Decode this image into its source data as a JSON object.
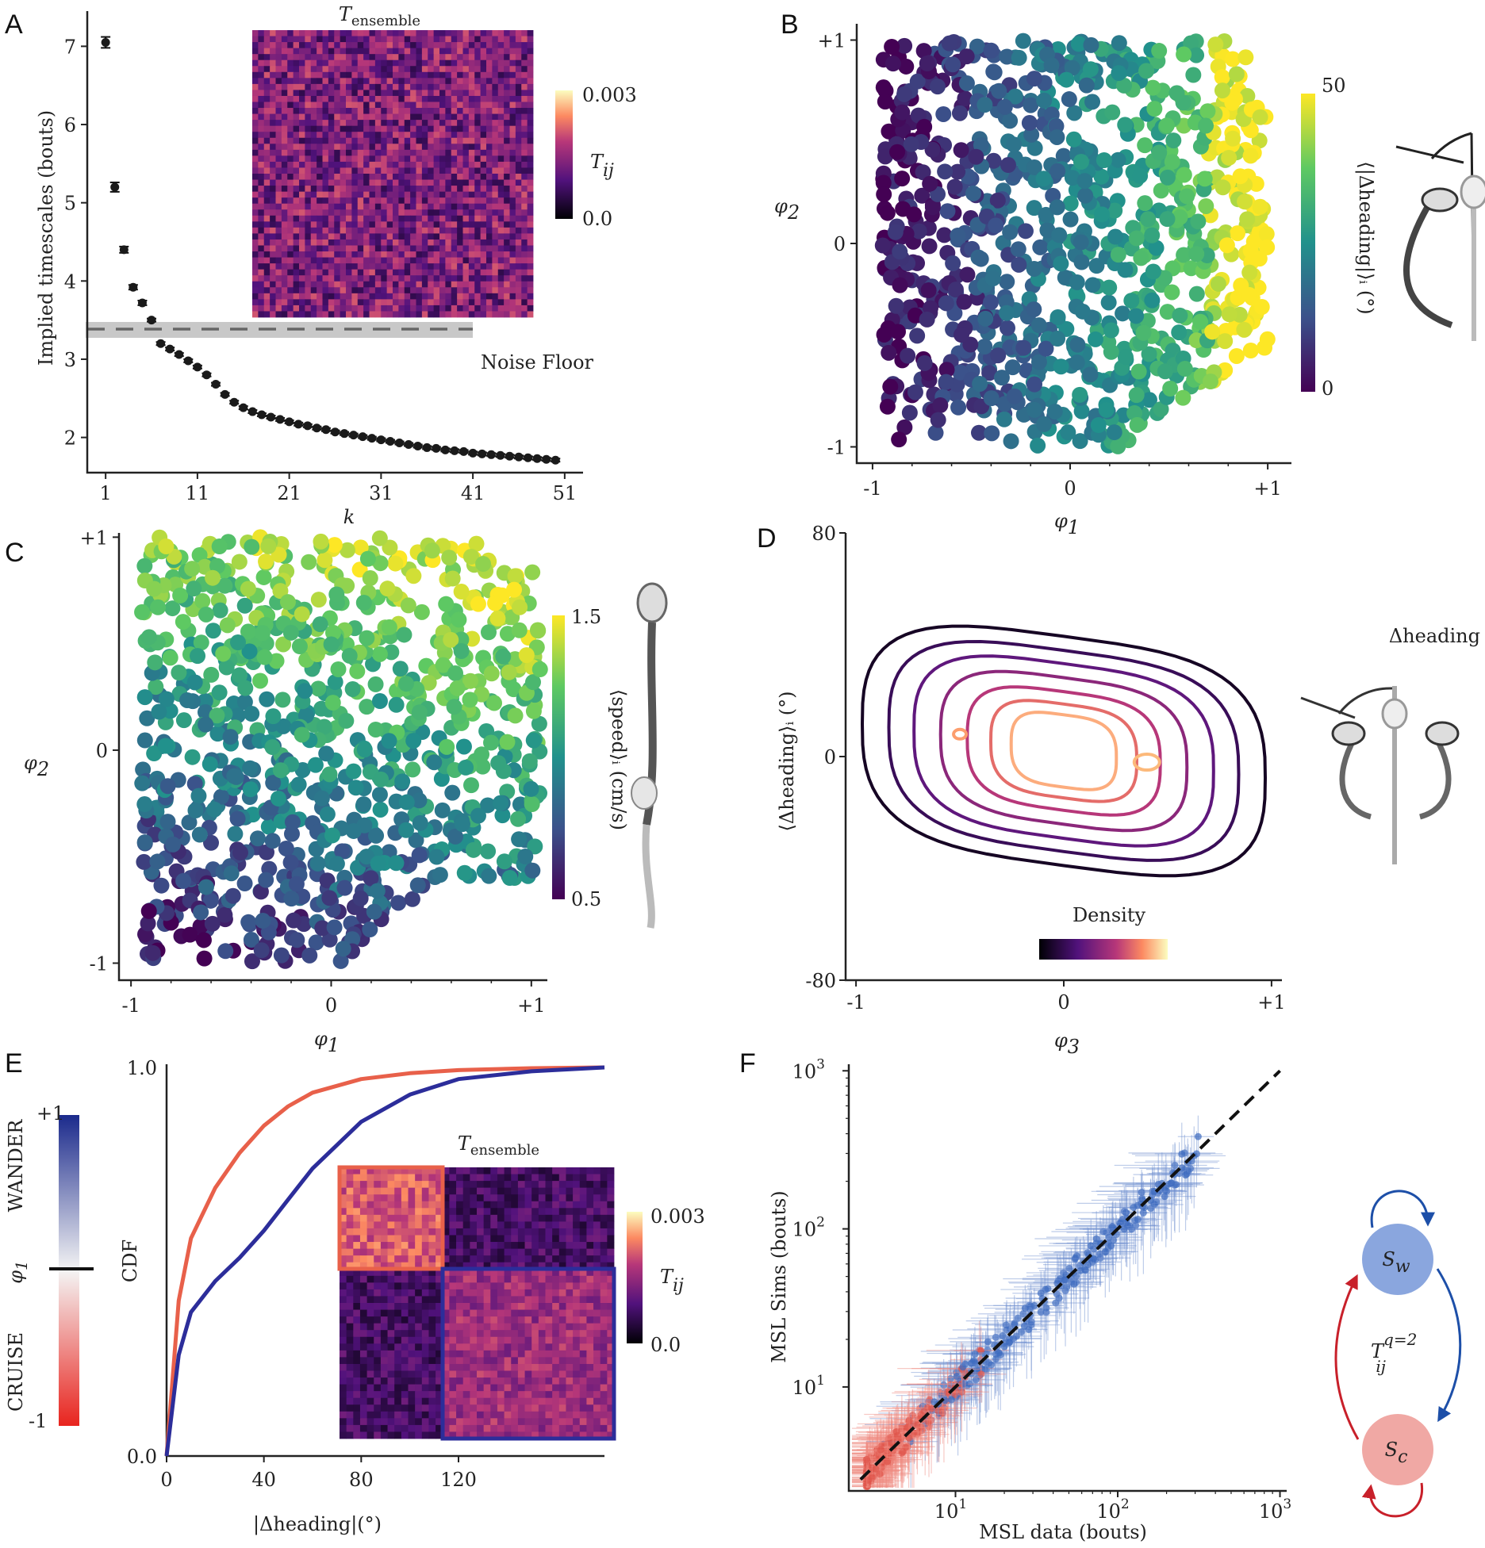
{
  "colors": {
    "cruise": "#e8604a",
    "wander": "#2c2d9a",
    "wander_light": "#6f8fd0",
    "cruise_light": "#ef8a80",
    "axis": "#222222",
    "noise_band": "#c8c8c8"
  },
  "panels": {
    "A": {
      "letter": "A"
    },
    "B": {
      "letter": "B"
    },
    "C": {
      "letter": "C"
    },
    "D": {
      "letter": "D"
    },
    "E": {
      "letter": "E"
    },
    "F": {
      "letter": "F"
    }
  },
  "chart_data": [
    {
      "id": "A",
      "type": "scatter",
      "ylabel": "Implied timescales (bouts)",
      "xlabel": "k",
      "xticks": [
        "1",
        "11",
        "21",
        "31",
        "41",
        "51"
      ],
      "yticks": [
        "2",
        "3",
        "4",
        "5",
        "6",
        "7"
      ],
      "xlim": [
        -1,
        53
      ],
      "ylim": [
        1.55,
        7.45
      ],
      "noise_floor": {
        "value": 3.27,
        "label": "Noise Floor"
      },
      "inset": {
        "title": "T",
        "title_sub": "ensemble",
        "colorbar_label": "T",
        "colorbar_sub": "ij",
        "cbar_max": "0.003",
        "cbar_min": "0.0"
      },
      "x": [
        1,
        2,
        3,
        4,
        5,
        6,
        7,
        8,
        9,
        10,
        11,
        12,
        13,
        14,
        15,
        16,
        17,
        18,
        19,
        20,
        21,
        22,
        23,
        24,
        25,
        26,
        27,
        28,
        29,
        30,
        31,
        32,
        33,
        34,
        35,
        36,
        37,
        38,
        39,
        40,
        41,
        42,
        43,
        44,
        45,
        46,
        47,
        48,
        49,
        50
      ],
      "y": [
        7.05,
        5.2,
        4.4,
        3.92,
        3.72,
        3.5,
        3.2,
        3.13,
        3.06,
        2.98,
        2.9,
        2.8,
        2.68,
        2.55,
        2.45,
        2.38,
        2.33,
        2.29,
        2.26,
        2.23,
        2.2,
        2.17,
        2.15,
        2.12,
        2.1,
        2.07,
        2.05,
        2.03,
        2.01,
        1.99,
        1.97,
        1.95,
        1.93,
        1.91,
        1.89,
        1.87,
        1.86,
        1.84,
        1.83,
        1.82,
        1.8,
        1.79,
        1.78,
        1.77,
        1.76,
        1.75,
        1.74,
        1.73,
        1.72,
        1.71
      ],
      "err": [
        0.07,
        0.06,
        0.04,
        0.03,
        0.03,
        0.02,
        0.02,
        0.02,
        0.02,
        0.02,
        0.02,
        0.02,
        0.02,
        0.02,
        0.02,
        0.02,
        0.02,
        0.02,
        0.02,
        0.02,
        0.02,
        0.02,
        0.02,
        0.02,
        0.02,
        0.02,
        0.02,
        0.02,
        0.02,
        0.02,
        0.02,
        0.02,
        0.02,
        0.02,
        0.02,
        0.02,
        0.02,
        0.02,
        0.02,
        0.02,
        0.02,
        0.02,
        0.02,
        0.02,
        0.02,
        0.02,
        0.02,
        0.02,
        0.02,
        0.02
      ]
    },
    {
      "id": "B",
      "type": "scatter",
      "xlabel": "φ",
      "xlabel_sub": "1",
      "ylabel": "φ",
      "ylabel_sub": "2",
      "xticks": [
        "-1",
        "0",
        "+1"
      ],
      "yticks": [
        "+1",
        "0",
        "-1"
      ],
      "xlim": [
        -1.08,
        1.12
      ],
      "ylim": [
        -1.08,
        1.08
      ],
      "colorbar": {
        "label": "⟨|Δheading|⟩ᵢ (°)",
        "max": "50",
        "min": "0"
      }
    },
    {
      "id": "C",
      "type": "scatter",
      "xlabel": "φ",
      "xlabel_sub": "1",
      "ylabel": "φ",
      "ylabel_sub": "2",
      "xticks": [
        "-1",
        "0",
        "+1"
      ],
      "yticks": [
        "+1",
        "0",
        "-1"
      ],
      "xlim": [
        -1.06,
        1.08
      ],
      "ylim": [
        -1.08,
        1.02
      ],
      "colorbar": {
        "label": "⟨speed⟩ᵢ (cm/s)",
        "max": "1.5",
        "min": "0.5"
      }
    },
    {
      "id": "D",
      "type": "contour",
      "xlabel": "φ",
      "xlabel_sub": "3",
      "ylabel": "⟨Δheading⟩ᵢ (°)",
      "xticks": [
        "-1",
        "0",
        "+1"
      ],
      "yticks": [
        "80",
        "0",
        "-80"
      ],
      "xlim": [
        -1.05,
        1.05
      ],
      "ylim": [
        -80,
        80
      ],
      "colorbar_label": "Density",
      "side_label": "Δheading"
    },
    {
      "id": "E",
      "type": "line",
      "xlabel": "|Δheading|(°)",
      "ylabel": "CDF",
      "xticks": [
        "0",
        "40",
        "80",
        "120"
      ],
      "yticks": [
        "0.0",
        "1.0"
      ],
      "xlim": [
        0,
        180
      ],
      "ylim": [
        0,
        1
      ],
      "phi_bar": {
        "top": "+1",
        "bottom": "-1",
        "wander": "WANDER",
        "cruise": "CRUISE",
        "phi": "φ",
        "phi_sub": "1"
      },
      "inset": {
        "title": "T",
        "title_sub": "ensemble",
        "colorbar_label": "T",
        "colorbar_sub": "ij",
        "cbar_max": "0.003",
        "cbar_min": "0.0"
      },
      "series": [
        {
          "name": "CRUISE",
          "x": [
            0,
            5,
            10,
            20,
            30,
            40,
            50,
            60,
            80,
            100,
            120,
            150,
            180
          ],
          "values": [
            0,
            0.4,
            0.56,
            0.69,
            0.78,
            0.85,
            0.9,
            0.935,
            0.97,
            0.985,
            0.993,
            0.998,
            1.0
          ]
        },
        {
          "name": "WANDER",
          "x": [
            0,
            5,
            10,
            20,
            30,
            40,
            50,
            60,
            80,
            100,
            120,
            150,
            180
          ],
          "values": [
            0,
            0.26,
            0.37,
            0.45,
            0.51,
            0.58,
            0.66,
            0.74,
            0.86,
            0.93,
            0.97,
            0.99,
            1.0
          ]
        }
      ]
    },
    {
      "id": "F",
      "type": "scatter",
      "xlabel": "MSL data (bouts)",
      "ylabel": "MSL Sims (bouts)",
      "log_scale": true,
      "xticks": [
        "10",
        "10",
        "10"
      ],
      "xtick_exp": [
        "1",
        "2",
        "3"
      ],
      "yticks": [
        "10",
        "10",
        "10"
      ],
      "ytick_exp": [
        "1",
        "2",
        "3"
      ],
      "xlim": [
        2.2,
        1100
      ],
      "ylim": [
        2.2,
        1100
      ],
      "diagram": {
        "top_state": "S",
        "top_sub": "w",
        "bottom_state": "S",
        "bottom_sub": "c",
        "center": "T",
        "center_sup": "q=2",
        "center_sub": "ij"
      }
    }
  ]
}
